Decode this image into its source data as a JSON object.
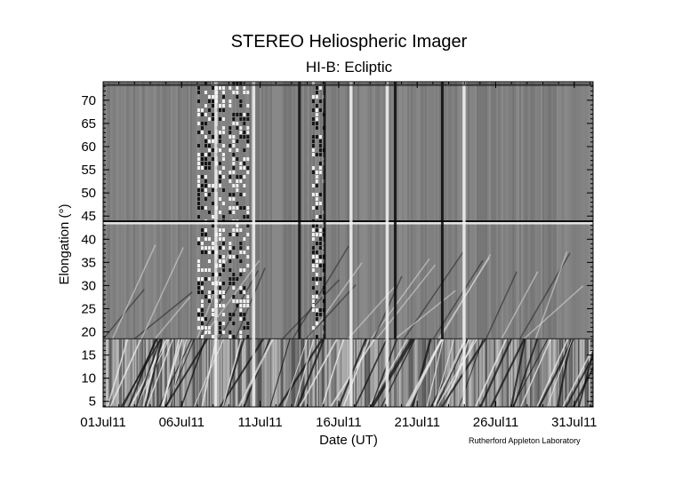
{
  "header": {
    "title": "STEREO Heliospheric Imager",
    "subtitle": "HI-B: Ecliptic"
  },
  "credit": "Rutherford Appleton Laboratory",
  "chart_data": {
    "type": "heatmap",
    "title": "STEREO Heliospheric Imager",
    "subtitle": "HI-B: Ecliptic",
    "xlabel": "Date (UT)",
    "ylabel": "Elongation (°)",
    "x_ticks": [
      "01Jul11",
      "06Jul11",
      "11Jul11",
      "16Jul11",
      "21Jul11",
      "26Jul11",
      "31Jul11"
    ],
    "x_tick_days": [
      1,
      6,
      11,
      16,
      21,
      26,
      31
    ],
    "xlim_days": [
      1,
      32.2
    ],
    "y_ticks": [
      5,
      10,
      15,
      20,
      25,
      30,
      35,
      40,
      45,
      50,
      55,
      60,
      65,
      70
    ],
    "ylim": [
      3.8,
      74
    ],
    "grid": false,
    "colormap": "grayscale",
    "features": {
      "hi1_hi2_boundary_elongation": 18.5,
      "bright_horizontal_band_elongation": 43.5,
      "bright_vertical_streaks_days": [
        8.2,
        10.6,
        16.8,
        19.1,
        24.0
      ],
      "dark_vertical_streaks_days": [
        13.5,
        15.1,
        19.6,
        22.6
      ],
      "checkered_data_gap_days": [
        [
          7.0,
          8.6
        ],
        [
          9.0,
          10.2
        ],
        [
          14.3,
          15.1
        ]
      ]
    }
  }
}
